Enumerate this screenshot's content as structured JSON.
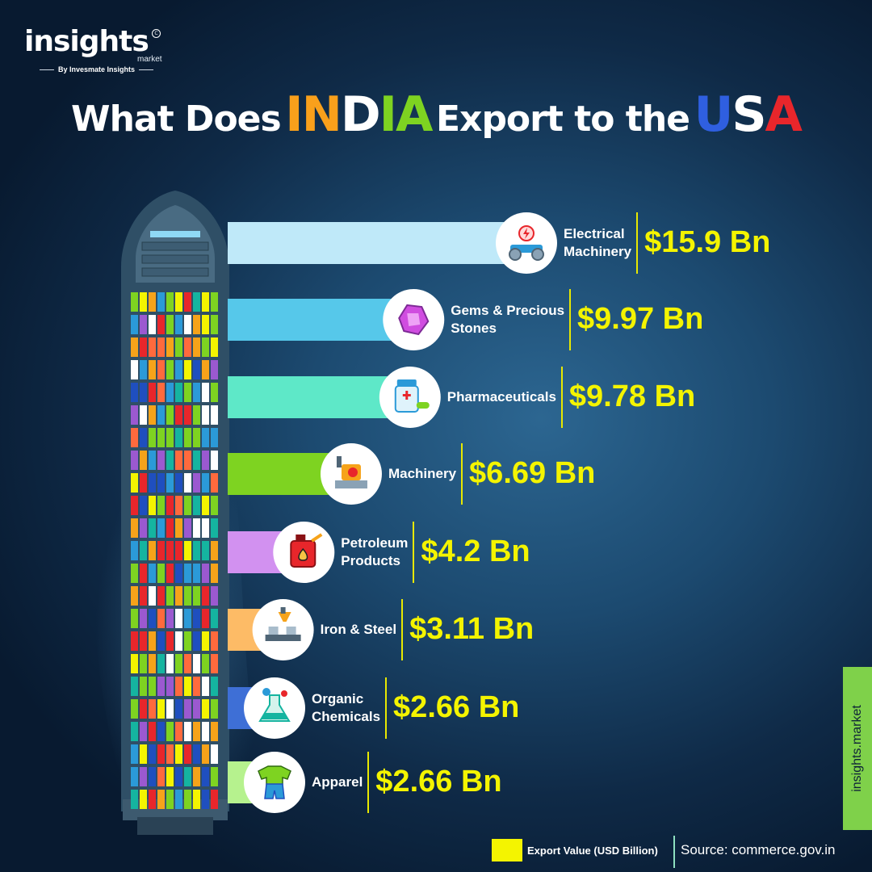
{
  "brand": {
    "name": "insights",
    "sub": "market",
    "reg_mark": "C",
    "byline": "By Invesmate Insights",
    "side_tab": "insights.market"
  },
  "title": {
    "prefix": "What Does",
    "country1": "INDIA",
    "middle": "Export to the",
    "country2": "USA"
  },
  "legend": {
    "label": "Export Value (USD Billion)",
    "color": "#f4f400"
  },
  "source": "Source: commerce.gov.in",
  "chart_data": {
    "type": "bar",
    "orientation": "horizontal",
    "title": "What Does INDIA Export to the USA",
    "unit": "USD Billion",
    "categories": [
      "Electrical Machinery",
      "Gems & Precious Stones",
      "Pharmaceuticals",
      "Machinery",
      "Petroleum Products",
      "Iron & Steel",
      "Organic Chemicals",
      "Apparel"
    ],
    "values": [
      15.9,
      9.97,
      9.78,
      6.69,
      4.2,
      3.11,
      2.66,
      2.66
    ],
    "value_labels": [
      "$15.9 Bn",
      "$9.97 Bn",
      "$9.78 Bn",
      "$6.69 Bn",
      "$4.2 Bn",
      "$3.11 Bn",
      "$2.66 Bn",
      "$2.66 Bn"
    ],
    "label_lines": [
      [
        "Electrical",
        "Machinery"
      ],
      [
        "Gems & Precious",
        "Stones"
      ],
      [
        "Pharmaceuticals"
      ],
      [
        "Machinery"
      ],
      [
        "Petroleum",
        "Products"
      ],
      [
        "Iron & Steel"
      ],
      [
        "Organic",
        "Chemicals"
      ],
      [
        "Apparel"
      ]
    ],
    "icons": [
      "electrical-machinery-icon",
      "gem-icon",
      "medicine-bottle-icon",
      "machine-icon",
      "fuel-canister-icon",
      "steel-furnace-icon",
      "chemical-flask-icon",
      "apparel-icon"
    ],
    "bar_colors": [
      "#bfe9f9",
      "#56c8ea",
      "#5ee8c8",
      "#7ed321",
      "#d291f0",
      "#fdbb66",
      "#3e6fd6",
      "#b6f28e"
    ],
    "value_color": "#f4f400"
  },
  "colors": {
    "india_i": "#f9a01b",
    "india_n": "#f9a01b",
    "india_d": "#ffffff",
    "india_i2": "#7ed321",
    "india_a": "#7ed321",
    "usa_u": "#2f5fe0",
    "usa_s": "#ffffff",
    "usa_a": "#e8262b"
  }
}
